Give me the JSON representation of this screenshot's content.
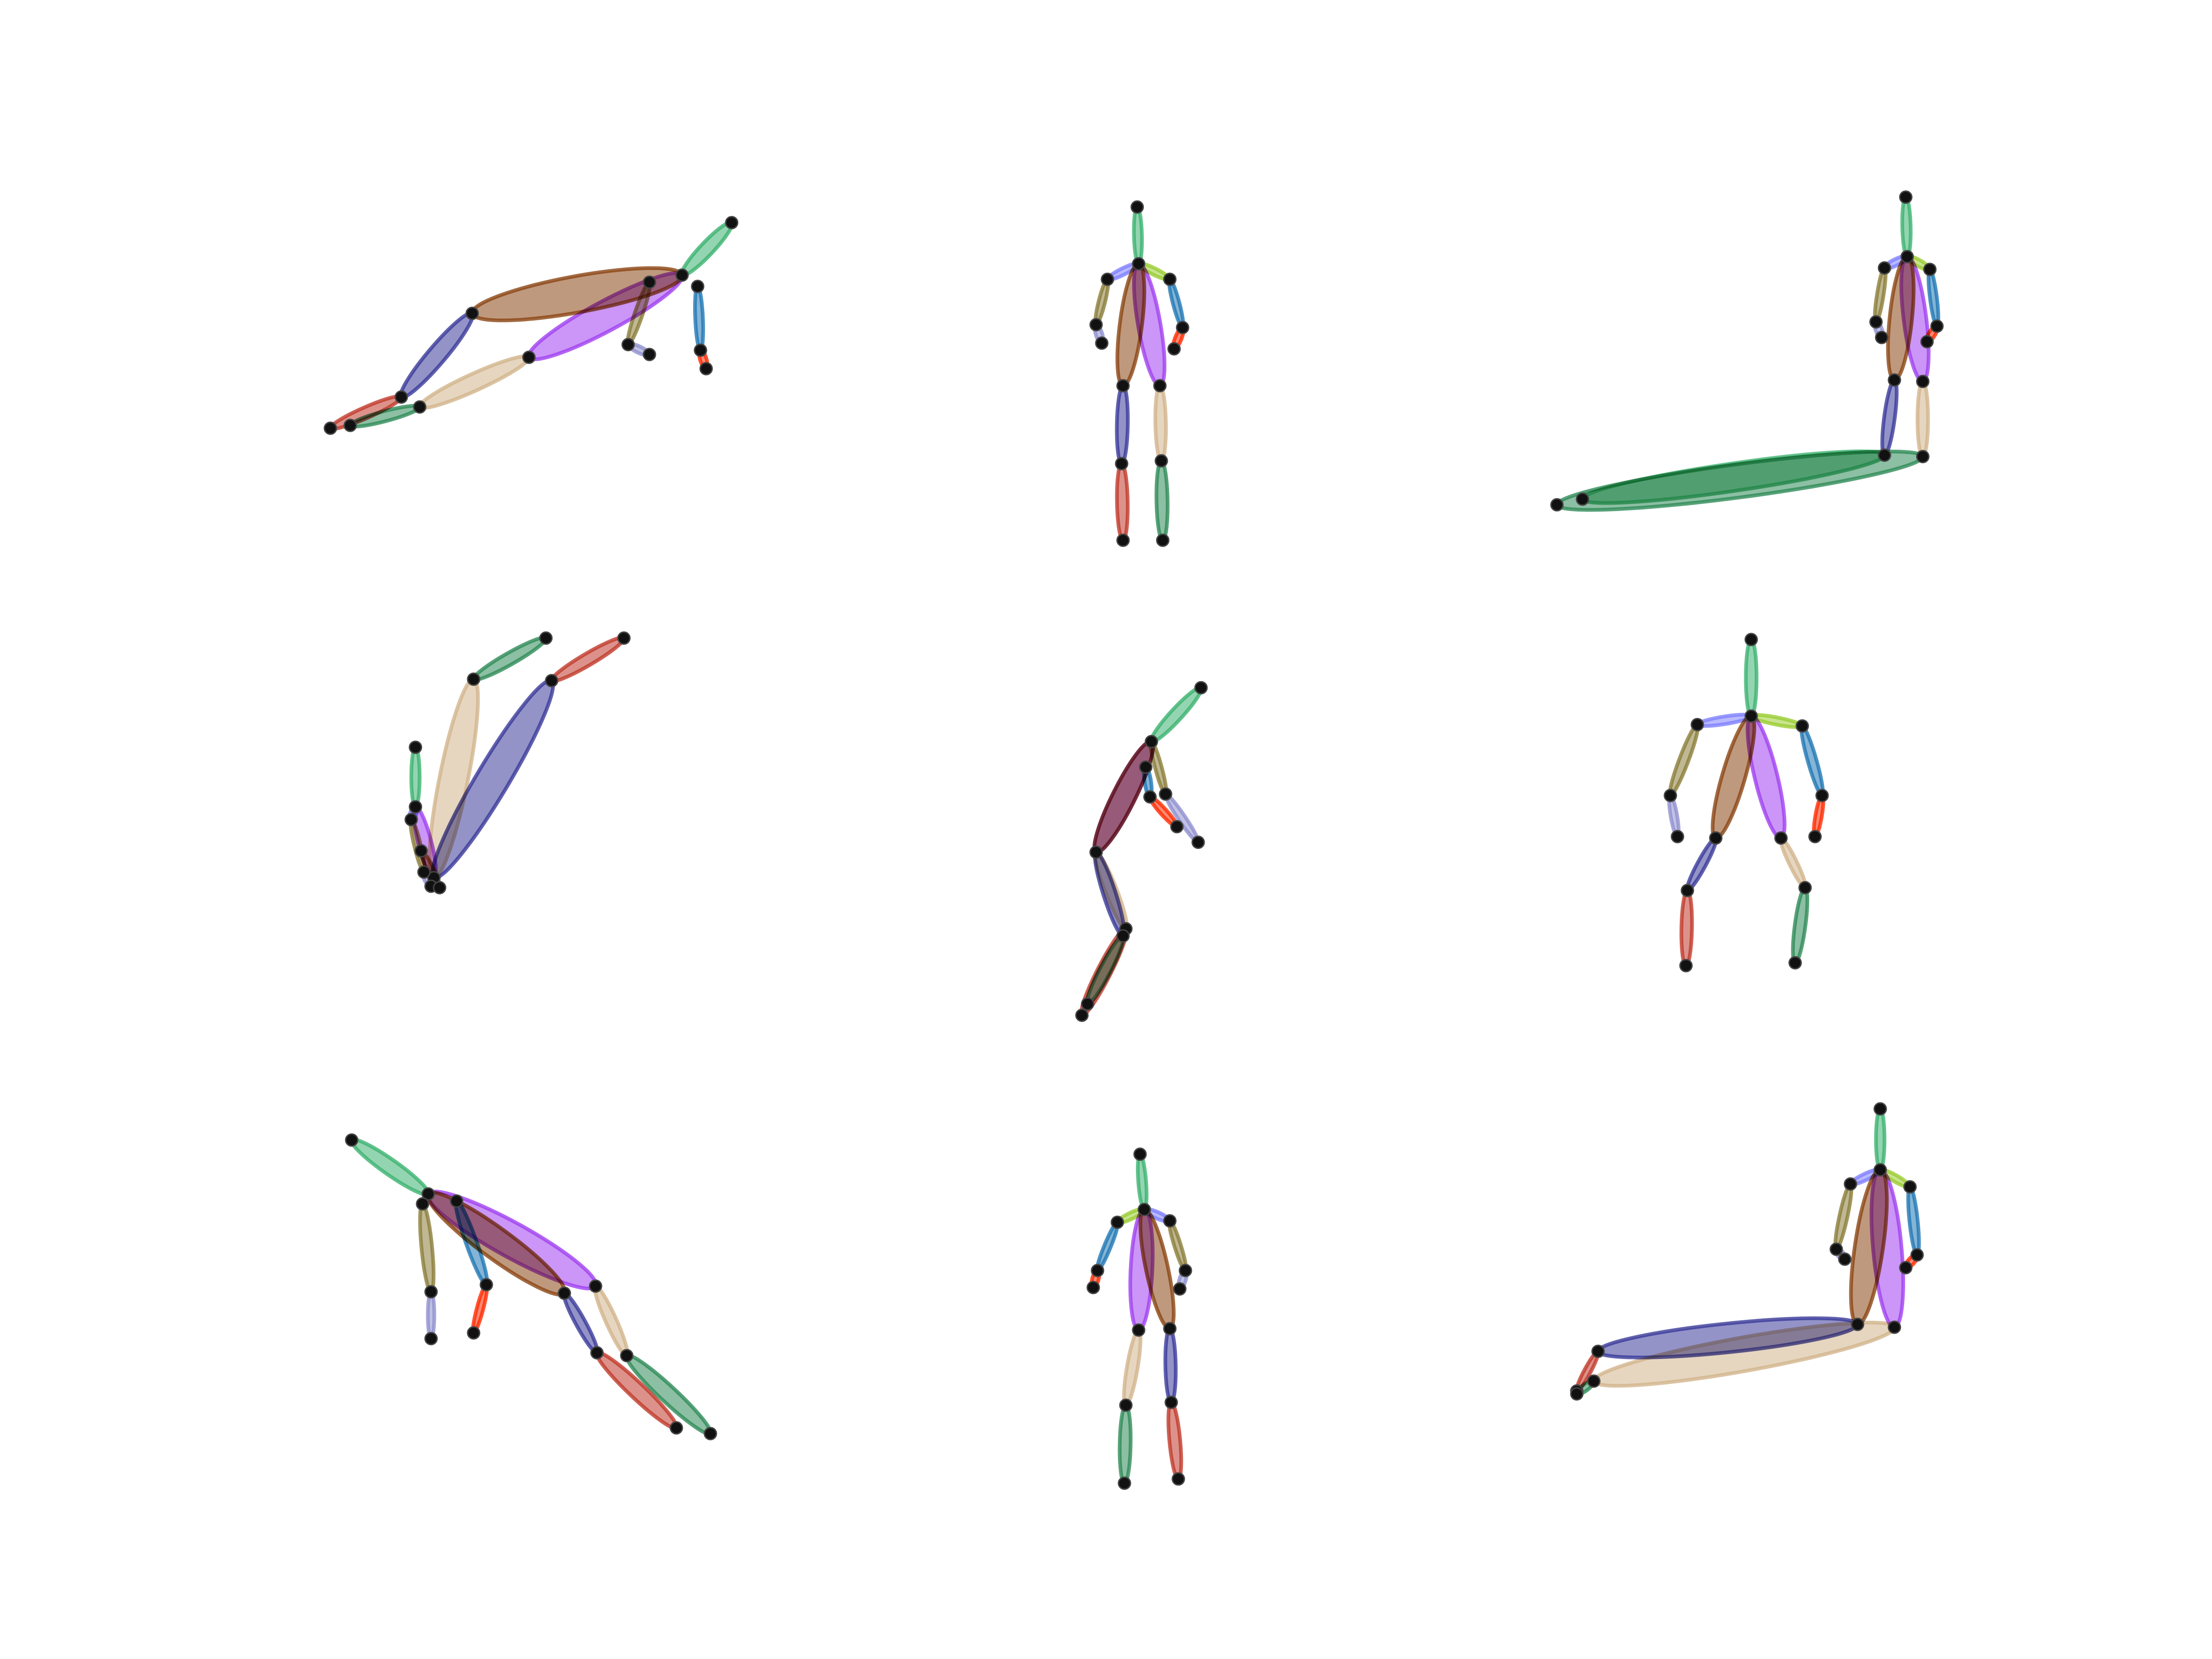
{
  "figure": {
    "description_free": true,
    "panels_grid": {
      "rows": 3,
      "cols": 3
    },
    "limb_colors": {
      "head": "#3cb371",
      "spine_upper": "#8b4513",
      "left_torso": "#a040f0",
      "right_torso": "#8b4513",
      "left_shoulder": "#8080ff",
      "right_shoulder": "#9acd32",
      "left_upper_arm": "#1f77b4",
      "left_forearm": "#ff2a00",
      "right_upper_arm": "#8b7d3a",
      "right_forearm": "#9090d0",
      "left_thigh": "#d2b48c",
      "left_shin": "#2e8b57",
      "right_thigh": "#3a3a9a",
      "right_shin": "#c0392b"
    }
  }
}
